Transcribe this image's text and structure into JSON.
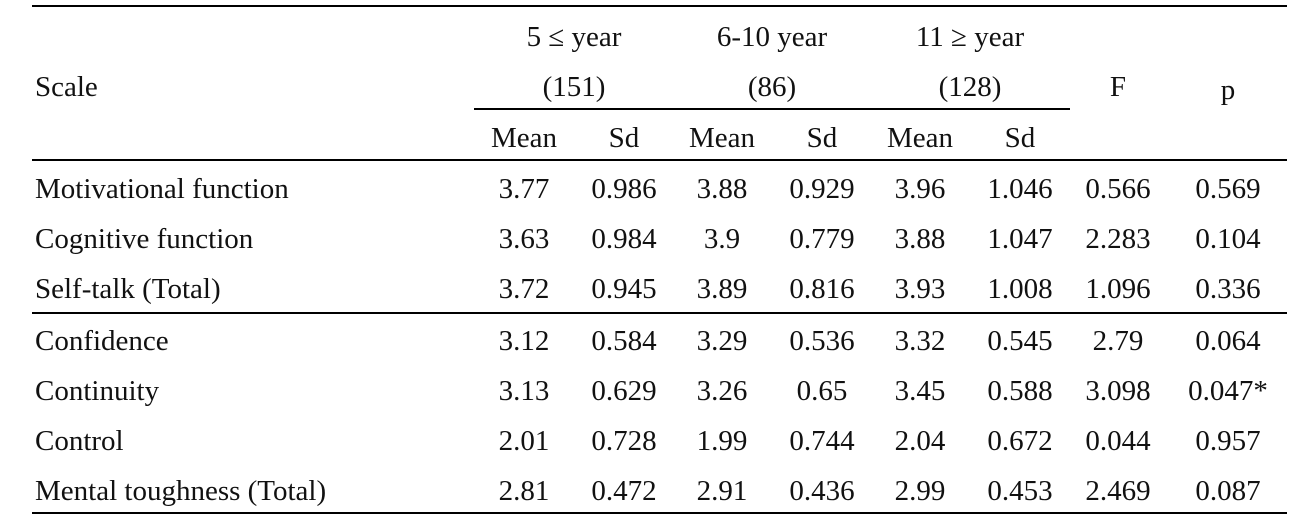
{
  "table": {
    "header": {
      "scale": "Scale",
      "groups": [
        {
          "label": "5 ≤ year",
          "n": "(151)"
        },
        {
          "label": "6-10 year",
          "n": "(86)"
        },
        {
          "label": "11 ≥ year",
          "n": "(128)"
        }
      ],
      "f": "F",
      "p": "p",
      "sub": [
        "Mean",
        "Sd",
        "Mean",
        "Sd",
        "Mean",
        "Sd"
      ]
    },
    "rows": [
      {
        "scale": "Motivational function",
        "cells": [
          "3.77",
          "0.986",
          "3.88",
          "0.929",
          "3.96",
          "1.046",
          "0.566",
          "0.569"
        ]
      },
      {
        "scale": "Cognitive function",
        "cells": [
          "3.63",
          "0.984",
          "3.9",
          "0.779",
          "3.88",
          "1.047",
          "2.283",
          "0.104"
        ]
      },
      {
        "scale": "Self-talk (Total)",
        "cells": [
          "3.72",
          "0.945",
          "3.89",
          "0.816",
          "3.93",
          "1.008",
          "1.096",
          "0.336"
        ]
      },
      {
        "scale": "Confidence",
        "cells": [
          "3.12",
          "0.584",
          "3.29",
          "0.536",
          "3.32",
          "0.545",
          "2.79",
          "0.064"
        ]
      },
      {
        "scale": "Continuity",
        "cells": [
          "3.13",
          "0.629",
          "3.26",
          "0.65",
          "3.45",
          "0.588",
          "3.098",
          "0.047*"
        ]
      },
      {
        "scale": "Control",
        "cells": [
          "2.01",
          "0.728",
          "1.99",
          "0.744",
          "2.04",
          "0.672",
          "0.044",
          "0.957"
        ]
      },
      {
        "scale": "Mental toughness (Total)",
        "cells": [
          "2.81",
          "0.472",
          "2.91",
          "0.436",
          "2.99",
          "0.453",
          "2.469",
          "0.087"
        ]
      }
    ]
  }
}
